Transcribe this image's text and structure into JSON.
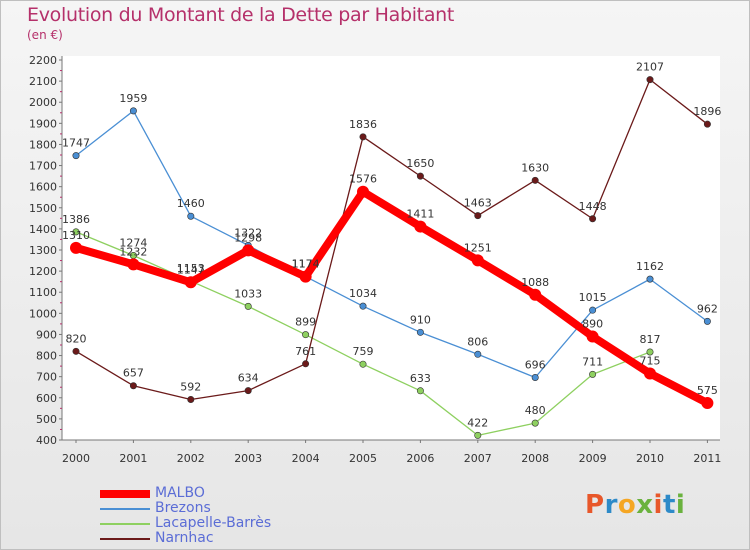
{
  "title": "Evolution du Montant de la Dette par Habitant",
  "subtitle": "(en €)",
  "logo_text": "Proxiti",
  "chart_data": {
    "type": "line",
    "title": "Evolution du Montant de la Dette par Habitant",
    "subtitle": "(en €)",
    "ylim": [
      400,
      2200
    ],
    "yticks": [
      400,
      500,
      600,
      700,
      800,
      900,
      1000,
      1100,
      1200,
      1300,
      1400,
      1500,
      1600,
      1700,
      1800,
      1900,
      2000,
      2100,
      2200
    ],
    "grid": false,
    "legend_position": "bottom-left",
    "x": [
      "2000",
      "2001",
      "2002",
      "2003",
      "2004",
      "2005",
      "2006",
      "2007",
      "2008",
      "2009",
      "2010",
      "2011"
    ],
    "series": [
      {
        "name": "MALBO",
        "color": "#ff0000",
        "values": [
          1310,
          1232,
          1147,
          1298,
          1174,
          1576,
          1411,
          1251,
          1088,
          890,
          715,
          575
        ]
      },
      {
        "name": "Brezons",
        "color": "#4a8fd4",
        "values": [
          1747,
          1959,
          1460,
          1322,
          1174,
          1034,
          910,
          806,
          696,
          1015,
          1162,
          962
        ]
      },
      {
        "name": "Lacapelle-Barrès",
        "color": "#8ed060",
        "values": [
          1386,
          1274,
          1153,
          1033,
          899,
          759,
          633,
          422,
          480,
          711,
          817,
          null
        ]
      },
      {
        "name": "Narnhac",
        "color": "#6b1a1a",
        "values": [
          820,
          657,
          592,
          634,
          761,
          1836,
          1650,
          1463,
          1630,
          1448,
          2107,
          1896
        ]
      }
    ]
  }
}
